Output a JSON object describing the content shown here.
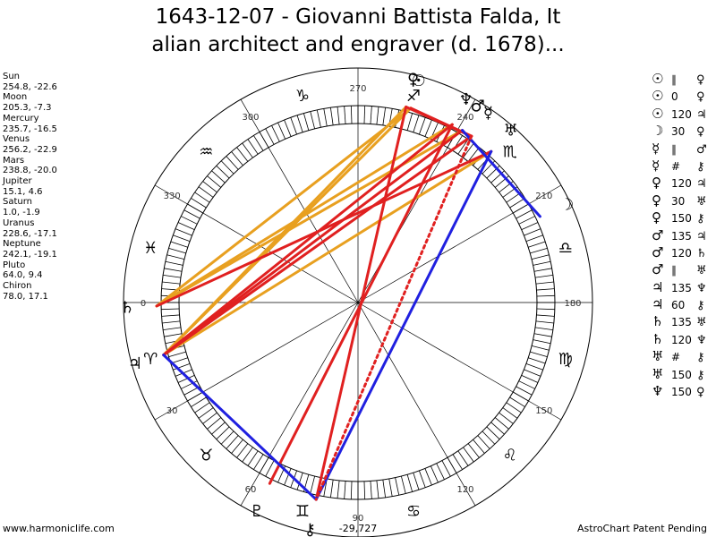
{
  "title": {
    "line1": "1643-12-07 - Giovanni Battista Falda, It",
    "line2": "alian architect and engraver (d. 1678)..."
  },
  "planets": [
    {
      "name": "Sun",
      "coords": "254.8, -22.6"
    },
    {
      "name": "Moon",
      "coords": "205.3, -7.3"
    },
    {
      "name": "Mercury",
      "coords": "235.7, -16.5"
    },
    {
      "name": "Venus",
      "coords": "256.2, -22.9"
    },
    {
      "name": "Mars",
      "coords": "238.8, -20.0"
    },
    {
      "name": "Jupiter",
      "coords": "15.1, 4.6"
    },
    {
      "name": "Saturn",
      "coords": "1.0, -1.9"
    },
    {
      "name": "Uranus",
      "coords": "228.6, -17.1"
    },
    {
      "name": "Neptune",
      "coords": "242.1, -19.1"
    },
    {
      "name": "Pluto",
      "coords": "64.0, 9.4"
    },
    {
      "name": "Chiron",
      "coords": "78.0, 17.1"
    }
  ],
  "aspects": [
    {
      "p1": "☉",
      "aspect": "∥",
      "p2": "♀"
    },
    {
      "p1": "☉",
      "aspect": "0",
      "p2": "♀"
    },
    {
      "p1": "☉",
      "aspect": "120",
      "p2": "♃"
    },
    {
      "p1": "☽",
      "aspect": "30",
      "p2": "♀"
    },
    {
      "p1": "☿",
      "aspect": "∥",
      "p2": "♂"
    },
    {
      "p1": "☿",
      "aspect": "#",
      "p2": "⚷"
    },
    {
      "p1": "♀",
      "aspect": "120",
      "p2": "♃"
    },
    {
      "p1": "♀",
      "aspect": "30",
      "p2": "♅"
    },
    {
      "p1": "♀",
      "aspect": "150",
      "p2": "⚷"
    },
    {
      "p1": "♂",
      "aspect": "135",
      "p2": "♃"
    },
    {
      "p1": "♂",
      "aspect": "120",
      "p2": "♄"
    },
    {
      "p1": "♂",
      "aspect": "∥",
      "p2": "♅"
    },
    {
      "p1": "♃",
      "aspect": "135",
      "p2": "♆"
    },
    {
      "p1": "♃",
      "aspect": "60",
      "p2": "⚷"
    },
    {
      "p1": "♄",
      "aspect": "135",
      "p2": "♅"
    },
    {
      "p1": "♄",
      "aspect": "120",
      "p2": "♆"
    },
    {
      "p1": "♅",
      "aspect": "#",
      "p2": "⚷"
    },
    {
      "p1": "♅",
      "aspect": "150",
      "p2": "⚷"
    },
    {
      "p1": "♆",
      "aspect": "150",
      "p2": "♀"
    }
  ],
  "wheel": {
    "degree_labels": [
      {
        "deg": 0,
        "label": "0"
      },
      {
        "deg": 30,
        "label": "30"
      },
      {
        "deg": 60,
        "label": "60"
      },
      {
        "deg": 90,
        "label": "90"
      },
      {
        "deg": 120,
        "label": "120"
      },
      {
        "deg": 150,
        "label": "150"
      },
      {
        "deg": 180,
        "label": "180"
      },
      {
        "deg": 210,
        "label": "210"
      },
      {
        "deg": 240,
        "label": "240"
      },
      {
        "deg": 270,
        "label": "270"
      },
      {
        "deg": 300,
        "label": "300"
      },
      {
        "deg": 330,
        "label": "330"
      }
    ],
    "sign_glyphs": [
      {
        "deg": 15,
        "glyph": "♈"
      },
      {
        "deg": 45,
        "glyph": "♉"
      },
      {
        "deg": 75,
        "glyph": "♊"
      },
      {
        "deg": 105,
        "glyph": "♋"
      },
      {
        "deg": 135,
        "glyph": "♌"
      },
      {
        "deg": 165,
        "glyph": "♍"
      },
      {
        "deg": 195,
        "glyph": "♎"
      },
      {
        "deg": 225,
        "glyph": "♏"
      },
      {
        "deg": 255,
        "glyph": "♐"
      },
      {
        "deg": 285,
        "glyph": "♑"
      },
      {
        "deg": 315,
        "glyph": "♒"
      },
      {
        "deg": 345,
        "glyph": "♓"
      }
    ],
    "bodies": [
      {
        "key": "sun",
        "glyph": "☉",
        "lon": 254.8
      },
      {
        "key": "moon",
        "glyph": "☽",
        "lon": 205.3
      },
      {
        "key": "mercury",
        "glyph": "☿",
        "lon": 235.7
      },
      {
        "key": "venus",
        "glyph": "♀",
        "lon": 256.2
      },
      {
        "key": "mars",
        "glyph": "♂",
        "lon": 238.8
      },
      {
        "key": "jupiter",
        "glyph": "♃",
        "lon": 15.1
      },
      {
        "key": "saturn",
        "glyph": "♄",
        "lon": 1.0
      },
      {
        "key": "uranus",
        "glyph": "♅",
        "lon": 228.6
      },
      {
        "key": "neptune",
        "glyph": "♆",
        "lon": 242.1
      },
      {
        "key": "pluto",
        "glyph": "♇",
        "lon": 64.0
      },
      {
        "key": "chiron",
        "glyph": "⚷",
        "lon": 78.0
      }
    ],
    "aspect_lines": [
      {
        "a": "sun",
        "b": "jupiter",
        "color": "#e8a020"
      },
      {
        "a": "sun",
        "b": "saturn",
        "color": "#e8a020"
      },
      {
        "a": "venus",
        "b": "jupiter",
        "color": "#e8a020"
      },
      {
        "a": "mars",
        "b": "saturn",
        "color": "#e8a020"
      },
      {
        "a": "uranus",
        "b": "jupiter",
        "color": "#e8a020"
      },
      {
        "a": "neptune",
        "b": "saturn",
        "color": "#e8a020"
      },
      {
        "a": "mars",
        "b": "jupiter",
        "color": "#e02020"
      },
      {
        "a": "saturn",
        "b": "uranus",
        "color": "#e02020"
      },
      {
        "a": "jupiter",
        "b": "neptune",
        "color": "#e02020"
      },
      {
        "a": "mercury",
        "b": "jupiter",
        "color": "#e02020"
      },
      {
        "a": "venus",
        "b": "chiron",
        "color": "#e02020"
      },
      {
        "a": "neptune",
        "b": "pluto",
        "color": "#e02020"
      },
      {
        "a": "sun",
        "b": "mercury",
        "color": "#e02020"
      },
      {
        "a": "venus",
        "b": "mercury",
        "color": "#e02020"
      },
      {
        "a": "moon",
        "b": "mars",
        "color": "#2020e0"
      },
      {
        "a": "uranus",
        "b": "chiron",
        "color": "#2020e0"
      },
      {
        "a": "jupiter",
        "b": "chiron",
        "color": "#2020e0"
      },
      {
        "a": "mercury",
        "b": "chiron",
        "color": "#e02020",
        "dashed": true
      }
    ],
    "asc_deg": 180
  },
  "bottom_value": "-29,727",
  "footer": {
    "left": "www.harmoniclife.com",
    "right": "AstroChart Patent Pending"
  }
}
